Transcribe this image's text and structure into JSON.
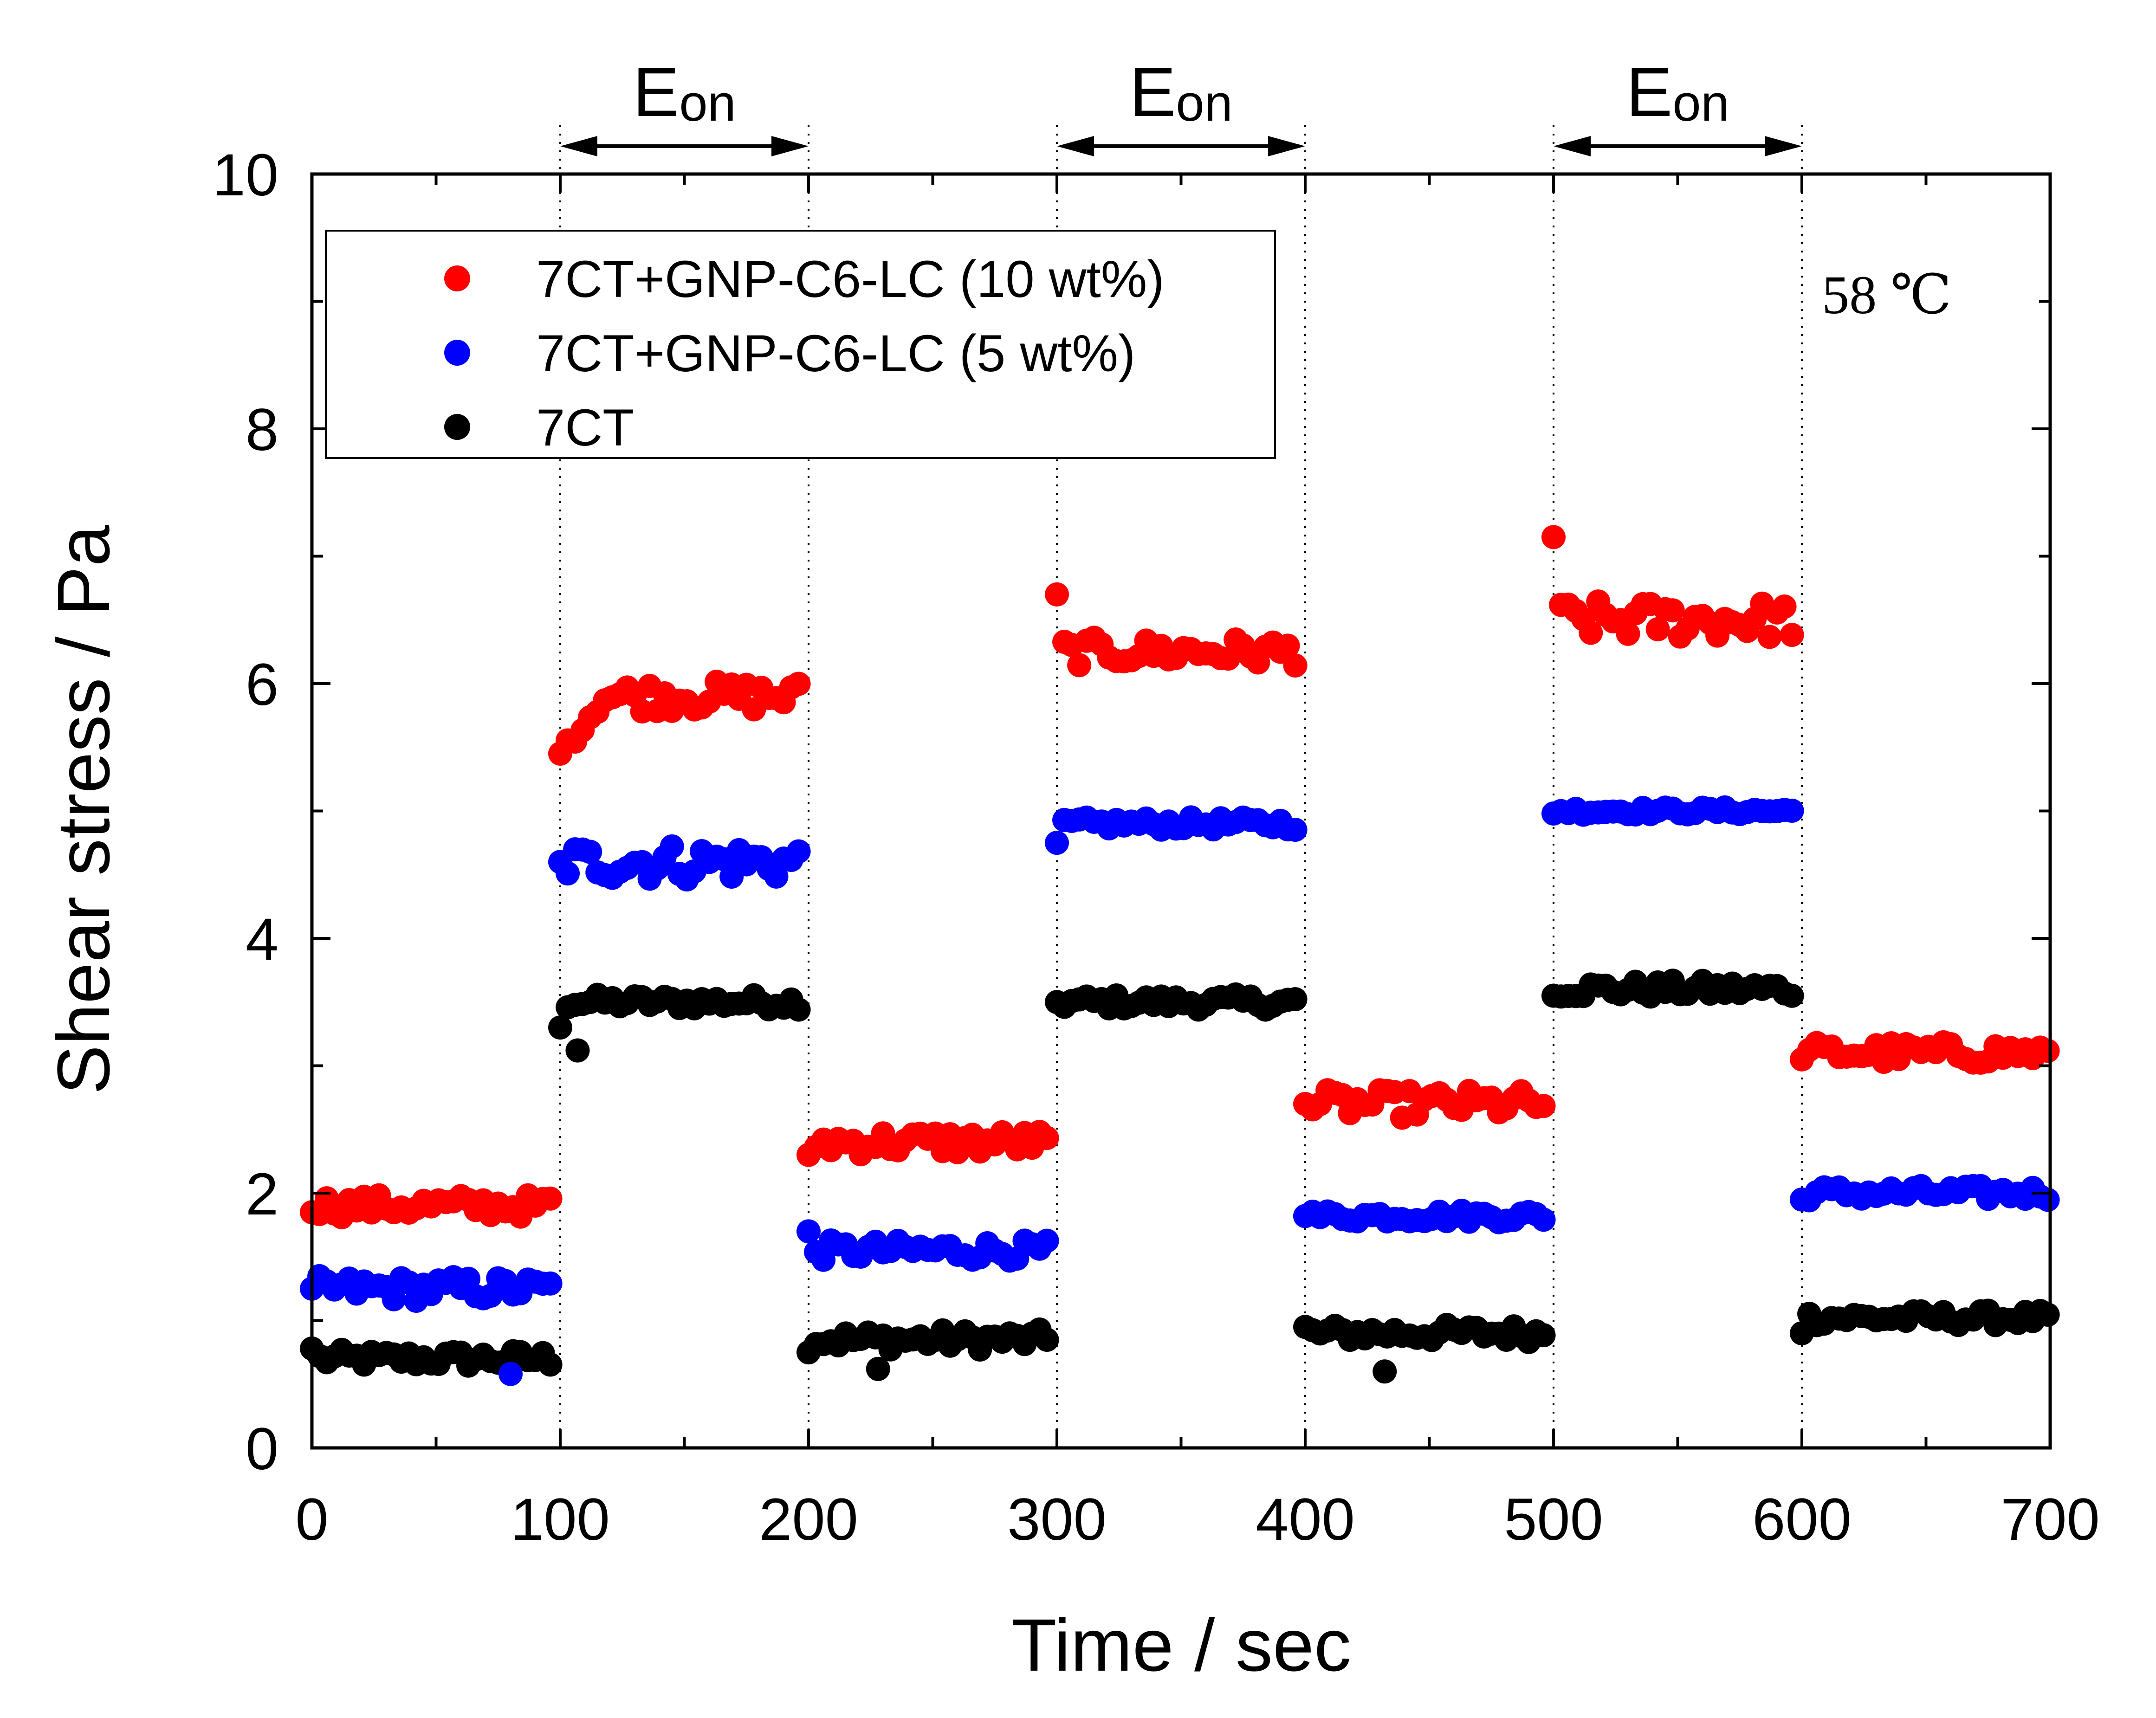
{
  "chart_data": {
    "type": "scatter",
    "xlabel": "Time / sec",
    "ylabel": "Shear stress / Pa",
    "xlim": [
      0,
      700
    ],
    "ylim": [
      0,
      10
    ],
    "x_ticks": [
      0,
      100,
      200,
      300,
      400,
      500,
      600,
      700
    ],
    "y_ticks": [
      0,
      2,
      4,
      6,
      8,
      10
    ],
    "temperature_label": "58 ℃",
    "field_on": {
      "label_main": "E",
      "label_sub": "on",
      "intervals": [
        [
          100,
          200
        ],
        [
          300,
          400
        ],
        [
          500,
          600
        ]
      ]
    },
    "legend_position": "top-left",
    "series": [
      {
        "name": "7CT+GNP-C6-LC (10 wt%)",
        "color": "#ff0000",
        "segments": [
          {
            "x_start": 0,
            "x_end": 97,
            "level": 1.9,
            "noise": 0.09,
            "first": 1.85
          },
          {
            "x_start": 100,
            "x_end": 197,
            "level": 5.9,
            "noise": 0.12,
            "first": 5.45,
            "rise": true
          },
          {
            "x_start": 200,
            "x_end": 297,
            "level": 2.4,
            "noise": 0.1,
            "first": 2.3
          },
          {
            "x_start": 300,
            "x_end": 397,
            "level": 6.25,
            "noise": 0.11,
            "first": 6.7
          },
          {
            "x_start": 400,
            "x_end": 497,
            "level": 2.7,
            "noise": 0.11,
            "first": 2.7
          },
          {
            "x_start": 500,
            "x_end": 597,
            "level": 6.5,
            "noise": 0.15,
            "first": 7.15
          },
          {
            "x_start": 600,
            "x_end": 700,
            "level": 3.1,
            "noise": 0.09,
            "first": 3.05
          }
        ]
      },
      {
        "name": "7CT+GNP-C6-LC (5 wt%)",
        "color": "#0000ff",
        "segments": [
          {
            "x_start": 0,
            "x_end": 97,
            "level": 1.25,
            "noise": 0.1,
            "first": 1.25,
            "outlier": [
              80,
              0.58
            ]
          },
          {
            "x_start": 100,
            "x_end": 197,
            "level": 4.6,
            "noise": 0.15,
            "first": 4.6
          },
          {
            "x_start": 200,
            "x_end": 297,
            "level": 1.55,
            "noise": 0.08,
            "first": 1.7
          },
          {
            "x_start": 300,
            "x_end": 397,
            "level": 4.9,
            "noise": 0.05,
            "first": 4.75
          },
          {
            "x_start": 400,
            "x_end": 497,
            "level": 1.82,
            "noise": 0.05,
            "first": 1.82
          },
          {
            "x_start": 500,
            "x_end": 597,
            "level": 5.0,
            "noise": 0.03,
            "first": 4.98
          },
          {
            "x_start": 600,
            "x_end": 700,
            "level": 2.0,
            "noise": 0.06,
            "first": 1.95
          }
        ]
      },
      {
        "name": "7CT",
        "color": "#000000",
        "segments": [
          {
            "x_start": 0,
            "x_end": 97,
            "level": 0.7,
            "noise": 0.07,
            "first": 0.78
          },
          {
            "x_start": 100,
            "x_end": 197,
            "level": 3.5,
            "noise": 0.06,
            "first": 3.3,
            "outlier": [
              107,
              3.12
            ]
          },
          {
            "x_start": 200,
            "x_end": 297,
            "level": 0.85,
            "noise": 0.08,
            "first": 0.75,
            "outlier": [
              228,
              0.62
            ]
          },
          {
            "x_start": 300,
            "x_end": 397,
            "level": 3.5,
            "noise": 0.06,
            "first": 3.5
          },
          {
            "x_start": 400,
            "x_end": 497,
            "level": 0.9,
            "noise": 0.07,
            "first": 0.95,
            "outlier": [
              432,
              0.6
            ]
          },
          {
            "x_start": 500,
            "x_end": 597,
            "level": 3.6,
            "noise": 0.07,
            "first": 3.55
          },
          {
            "x_start": 600,
            "x_end": 700,
            "level": 1.02,
            "noise": 0.06,
            "first": 0.9
          }
        ]
      }
    ]
  }
}
